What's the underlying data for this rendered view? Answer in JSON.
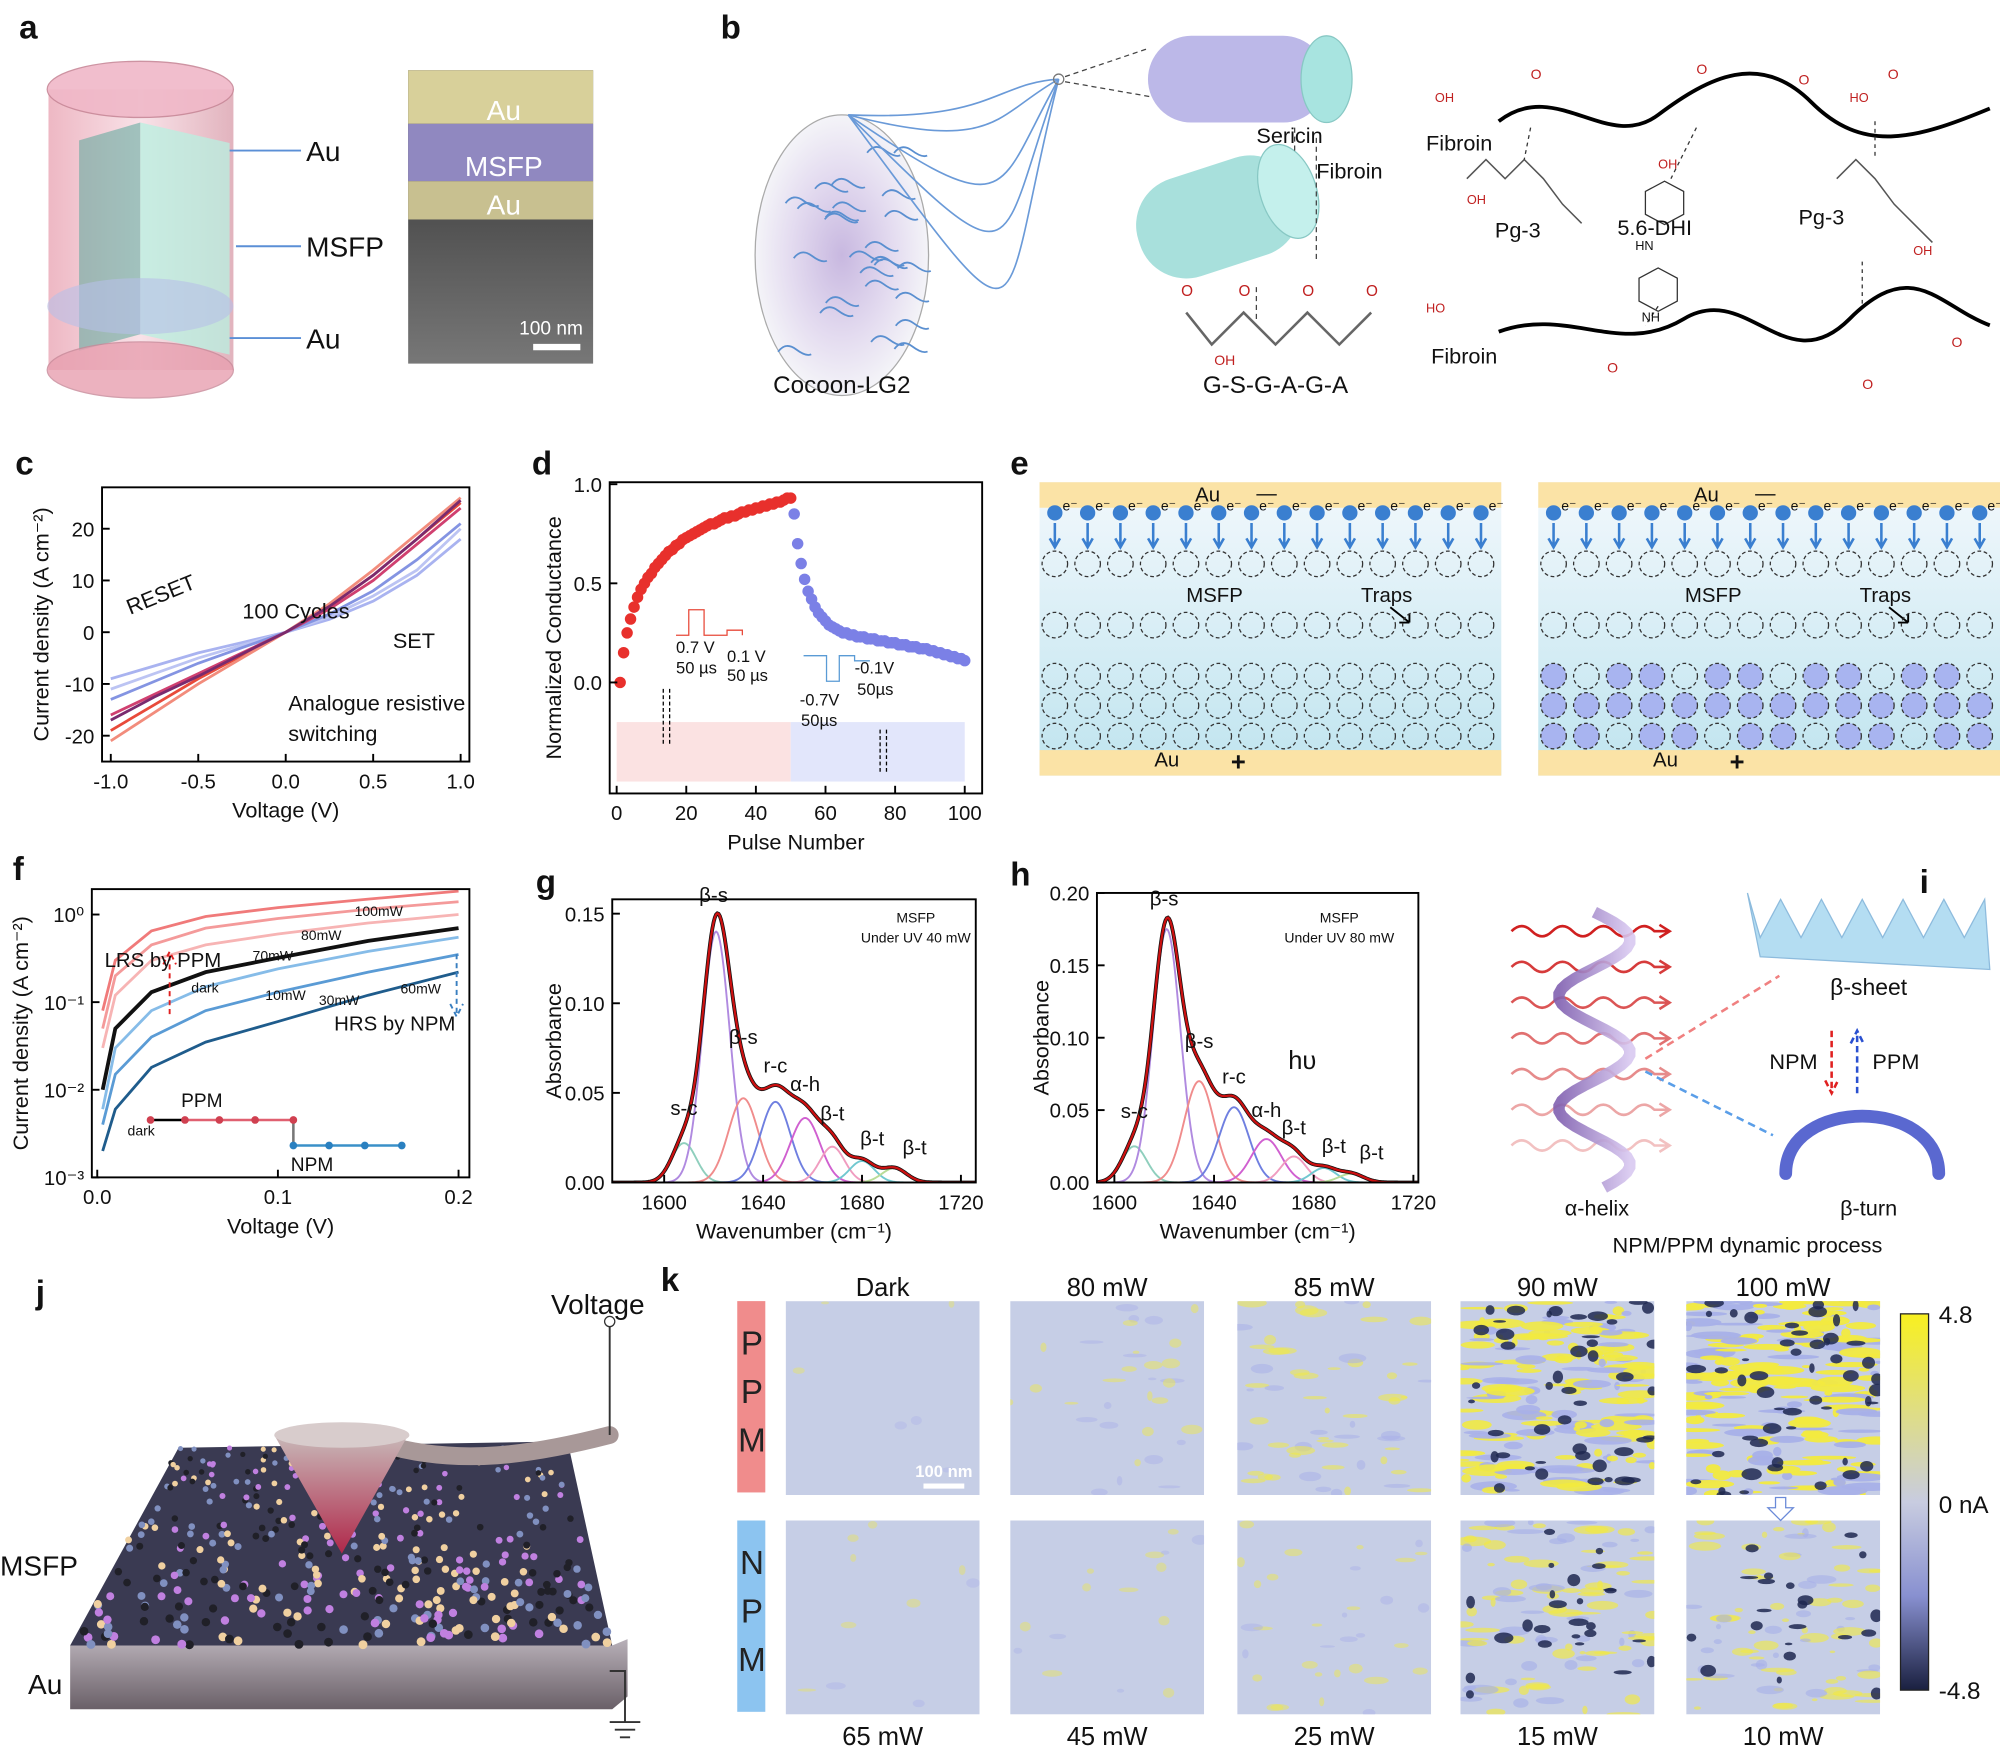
{
  "a": {
    "label": "a",
    "device_labels": [
      "Au",
      "MSFP",
      "Au"
    ],
    "sem_labels": [
      "Au",
      "MSFP",
      "Au"
    ],
    "scale_bar": "100 nm"
  },
  "b": {
    "label": "b",
    "cocoon": "Cocoon-LG2",
    "fiber_labels": [
      "Sericin",
      "Fibroin"
    ],
    "sequence": "G-S-G-A-G-A",
    "chem_labels": [
      "Fibroin",
      "Pg-3",
      "5.6-DHI",
      "Pg-3",
      "Fibroin"
    ],
    "atoms": [
      "O",
      "OH",
      "HO",
      "HN",
      "NH"
    ]
  },
  "e": {
    "label": "e",
    "electrode_top": "Au",
    "electrode_bottom": "Au",
    "minus": "—",
    "plus": "+",
    "layer": "MSFP",
    "traps": "Traps",
    "electron": "e⁻"
  },
  "i": {
    "label": "i",
    "light": "hυ",
    "beta_sheet": "β-sheet",
    "npm": "NPM",
    "ppm": "PPM",
    "alpha_helix": "α-helix",
    "beta_turn": "β-turn",
    "caption": "NPM/PPM dynamic process"
  },
  "j": {
    "label": "j",
    "voltage": "Voltage",
    "layer": "MSFP",
    "substrate": "Au"
  },
  "k": {
    "label": "k",
    "rows": [
      {
        "mode": "PPM",
        "powers": [
          "Dark",
          "80 mW",
          "85 mW",
          "90 mW",
          "100 mW"
        ]
      },
      {
        "mode": "NPM",
        "powers": [
          "65 mW",
          "45 mW",
          "25 mW",
          "15 mW",
          "10 mW"
        ]
      }
    ],
    "scale_bar": "100 nm",
    "colorbar": [
      4.8,
      "0 nA",
      -4.8
    ]
  },
  "chart_data": [
    {
      "type": "line",
      "label": "c",
      "xlabel": "Voltage (V)",
      "ylabel": "Current density (A cm⁻²)",
      "xlim": [
        -1.05,
        1.05
      ],
      "ylim": [
        -25,
        28
      ],
      "xticks": [
        {
          "value": -1,
          "label": "-1.0"
        },
        -0.5,
        {
          "value": 0,
          "label": "0.0"
        },
        0.5,
        {
          "value": 1,
          "label": "1.0"
        }
      ],
      "yticks": [
        -20,
        -10,
        0,
        10,
        20
      ],
      "x": [
        -1,
        -0.75,
        -0.5,
        -0.25,
        0,
        0.25,
        0.5,
        0.75,
        1
      ],
      "series": [
        {
          "color": "#a9b3f0",
          "values": [
            -9,
            -6.5,
            -4,
            -2,
            0,
            2.5,
            6,
            11,
            18
          ]
        },
        {
          "color": "#bcc4f3",
          "values": [
            -11,
            -8,
            -5,
            -2.5,
            0,
            3,
            7,
            12,
            20
          ]
        },
        {
          "color": "#8494e2",
          "values": [
            -13,
            -9.5,
            -6,
            -3,
            0,
            3.5,
            8,
            14,
            21
          ]
        },
        {
          "color": "#d04070",
          "values": [
            -16,
            -12,
            -8,
            -4,
            0,
            4.5,
            10,
            17,
            24
          ]
        },
        {
          "color": "#e84a3a",
          "values": [
            -19,
            -14,
            -9,
            -4.5,
            0,
            5,
            11,
            18,
            25
          ]
        },
        {
          "color": "#f28c7c",
          "values": [
            -21,
            -15.5,
            -10,
            -5,
            0,
            5.5,
            12,
            19,
            26
          ]
        },
        {
          "color": "#7a2a6e",
          "values": [
            -17,
            -12.5,
            -8.5,
            -4.2,
            0,
            5,
            11,
            18,
            25.5
          ]
        }
      ],
      "annotations": [
        "RESET",
        "100 Cycles",
        "SET",
        "Analogue resistive",
        "switching"
      ]
    },
    {
      "type": "scatter",
      "label": "d",
      "xlabel": "Pulse Number",
      "ylabel": "Normalized Conductance",
      "xlim": [
        -2,
        105
      ],
      "ylim": [
        -0.56,
        1.01
      ],
      "xticks": [
        0,
        20,
        40,
        60,
        80,
        100
      ],
      "yticks": [
        {
          "value": 0,
          "label": "0.0"
        },
        {
          "value": 0.5,
          "label": "0.5"
        },
        {
          "value": 1,
          "label": "1.0"
        }
      ],
      "series": [
        {
          "color": "#e8302c",
          "x": [
            1,
            2,
            3,
            4,
            5,
            6,
            7,
            8,
            9,
            10,
            11,
            12,
            13,
            14,
            15,
            16,
            17,
            18,
            19,
            20,
            21,
            22,
            23,
            24,
            25,
            26,
            27,
            28,
            29,
            30,
            31,
            32,
            33,
            34,
            35,
            36,
            37,
            38,
            39,
            40,
            41,
            42,
            43,
            44,
            45,
            46,
            47,
            48,
            49,
            50
          ],
          "values": [
            0.0,
            0.15,
            0.25,
            0.32,
            0.38,
            0.43,
            0.47,
            0.5,
            0.53,
            0.55,
            0.58,
            0.6,
            0.62,
            0.64,
            0.66,
            0.67,
            0.69,
            0.7,
            0.72,
            0.73,
            0.74,
            0.75,
            0.76,
            0.77,
            0.78,
            0.79,
            0.8,
            0.8,
            0.81,
            0.82,
            0.83,
            0.83,
            0.84,
            0.84,
            0.85,
            0.86,
            0.86,
            0.87,
            0.87,
            0.88,
            0.88,
            0.89,
            0.89,
            0.9,
            0.9,
            0.91,
            0.91,
            0.92,
            0.93,
            0.93
          ]
        },
        {
          "color": "#7b80e6",
          "x": [
            51,
            52,
            53,
            54,
            55,
            56,
            57,
            58,
            59,
            60,
            61,
            62,
            63,
            64,
            65,
            66,
            67,
            68,
            69,
            70,
            71,
            72,
            73,
            74,
            75,
            76,
            77,
            78,
            79,
            80,
            81,
            82,
            83,
            84,
            85,
            86,
            87,
            88,
            89,
            90,
            91,
            92,
            93,
            94,
            95,
            96,
            97,
            98,
            99,
            100
          ],
          "values": [
            0.85,
            0.7,
            0.6,
            0.52,
            0.46,
            0.42,
            0.38,
            0.35,
            0.33,
            0.31,
            0.29,
            0.28,
            0.27,
            0.26,
            0.25,
            0.25,
            0.24,
            0.24,
            0.23,
            0.23,
            0.23,
            0.22,
            0.22,
            0.22,
            0.21,
            0.21,
            0.21,
            0.2,
            0.2,
            0.2,
            0.19,
            0.19,
            0.19,
            0.18,
            0.18,
            0.18,
            0.17,
            0.17,
            0.17,
            0.16,
            0.16,
            0.15,
            0.15,
            0.14,
            0.14,
            0.13,
            0.13,
            0.12,
            0.12,
            0.11
          ]
        }
      ],
      "annotations": [
        "0.7 V",
        "50 µs",
        "0.1 V",
        "50 µs",
        "-0.1V",
        "50µs",
        "-0.7V",
        "50µs"
      ]
    },
    {
      "type": "line",
      "label": "f",
      "xlabel": "Voltage (V)",
      "ylabel": "Current density (A cm⁻²)",
      "xlim": [
        -0.003,
        0.206
      ],
      "ylim": [
        0.001,
        1.95
      ],
      "yscale": "log",
      "xticks": [
        {
          "value": 0,
          "label": "0.0"
        },
        0.1,
        0.2
      ],
      "yticks": [
        {
          "value": 0.001,
          "label": "10⁻³"
        },
        {
          "value": 0.01,
          "label": "10⁻²"
        },
        {
          "value": 0.1,
          "label": "10⁻¹"
        },
        {
          "value": 1,
          "label": "10⁰"
        }
      ],
      "x": [
        0.003,
        0.01,
        0.03,
        0.06,
        0.1,
        0.15,
        0.2
      ],
      "series": [
        {
          "name": "100mW",
          "color": "#f07a7a",
          "values": [
            0.08,
            0.3,
            0.65,
            0.95,
            1.2,
            1.5,
            1.85
          ]
        },
        {
          "name": "80mW",
          "color": "#f49a9a",
          "values": [
            0.05,
            0.2,
            0.45,
            0.7,
            0.9,
            1.15,
            1.4
          ]
        },
        {
          "name": "70mW",
          "color": "#f7b4b4",
          "values": [
            0.03,
            0.12,
            0.3,
            0.45,
            0.6,
            0.8,
            1.0
          ]
        },
        {
          "name": "dark",
          "color": "#111111",
          "values": [
            0.01,
            0.05,
            0.13,
            0.22,
            0.32,
            0.5,
            0.7
          ]
        },
        {
          "name": "10mW",
          "color": "#86bce8",
          "values": [
            0.006,
            0.03,
            0.08,
            0.15,
            0.24,
            0.38,
            0.55
          ]
        },
        {
          "name": "30mW",
          "color": "#5a9bd5",
          "values": [
            0.004,
            0.015,
            0.04,
            0.08,
            0.13,
            0.22,
            0.35
          ]
        },
        {
          "name": "60mW",
          "color": "#1f5c8c",
          "values": [
            0.002,
            0.006,
            0.018,
            0.035,
            0.06,
            0.12,
            0.22
          ]
        }
      ],
      "annotations": [
        "LRS by PPM",
        "HRS by NPM",
        "PPM",
        "NPM",
        "dark"
      ]
    },
    {
      "type": "peakfit",
      "label": "g",
      "xlabel": "Wavenumber (cm⁻¹)",
      "ylabel": "Absorbance",
      "xlim": [
        1579,
        1726
      ],
      "ylim": [
        0,
        0.158
      ],
      "xticks": [
        1600,
        1640,
        1680,
        1720
      ],
      "yticks": [
        {
          "value": 0,
          "label": "0.00"
        },
        {
          "value": 0.05,
          "label": "0.05"
        },
        {
          "value": 0.1,
          "label": "0.10"
        },
        {
          "value": 0.15,
          "label": "0.15"
        }
      ],
      "fit_color": "#cc1010",
      "peaks": [
        {
          "label": "s-c",
          "center": 1608,
          "height": 0.022,
          "width": 5,
          "color": "#8fcfbd"
        },
        {
          "label": "β-s",
          "center": 1621,
          "height": 0.14,
          "width": 5.5,
          "color": "#b08ae0"
        },
        {
          "label": "β-s",
          "center": 1632,
          "height": 0.047,
          "width": 6,
          "color": "#f08c8c"
        },
        {
          "label": "r-c",
          "center": 1645,
          "height": 0.045,
          "width": 6,
          "color": "#6f7fe0"
        },
        {
          "label": "α-h",
          "center": 1657,
          "height": 0.036,
          "width": 6,
          "color": "#d060d0"
        },
        {
          "label": "β-t",
          "center": 1668,
          "height": 0.02,
          "width": 5,
          "color": "#f09cc0"
        },
        {
          "label": "β-t",
          "center": 1680,
          "height": 0.012,
          "width": 5,
          "color": "#70c8d0"
        },
        {
          "label": "β-t",
          "center": 1693,
          "height": 0.008,
          "width": 5,
          "color": "#b8dc98"
        }
      ],
      "annotations": [
        "MSFP",
        "Under UV 40 mW"
      ]
    },
    {
      "type": "peakfit",
      "label": "h",
      "xlabel": "Wavenumber (cm⁻¹)",
      "ylabel": "Absorbance",
      "xlim": [
        1593,
        1722
      ],
      "ylim": [
        0,
        0.2
      ],
      "xticks": [
        1600,
        1640,
        1680,
        1720
      ],
      "yticks": [
        {
          "value": 0,
          "label": "0.00"
        },
        {
          "value": 0.05,
          "label": "0.05"
        },
        {
          "value": 0.1,
          "label": "0.10"
        },
        {
          "value": 0.15,
          "label": "0.15"
        },
        {
          "value": 0.2,
          "label": "0.20"
        }
      ],
      "fit_color": "#cc1010",
      "peaks": [
        {
          "label": "s-c",
          "center": 1608,
          "height": 0.025,
          "width": 5,
          "color": "#8fcfbd"
        },
        {
          "label": "β-s",
          "center": 1621,
          "height": 0.175,
          "width": 5.5,
          "color": "#b08ae0"
        },
        {
          "label": "β-s",
          "center": 1634,
          "height": 0.07,
          "width": 6,
          "color": "#f08c8c"
        },
        {
          "label": "r-c",
          "center": 1648,
          "height": 0.052,
          "width": 6,
          "color": "#6f7fe0"
        },
        {
          "label": "α-h",
          "center": 1661,
          "height": 0.03,
          "width": 6,
          "color": "#d060d0"
        },
        {
          "label": "β-t",
          "center": 1672,
          "height": 0.018,
          "width": 5,
          "color": "#f09cc0"
        },
        {
          "label": "β-t",
          "center": 1684,
          "height": 0.01,
          "width": 5,
          "color": "#70c8d0"
        },
        {
          "label": "β-t",
          "center": 1695,
          "height": 0.006,
          "width": 5,
          "color": "#b8dc98"
        }
      ],
      "annotations": [
        "MSFP",
        "Under UV 80 mW"
      ]
    }
  ]
}
